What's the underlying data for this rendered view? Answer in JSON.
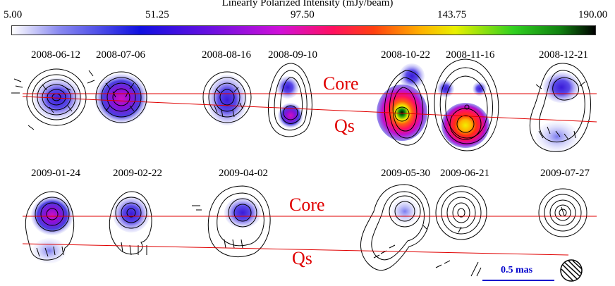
{
  "colorbar": {
    "title": "Linearly Polarized Intensity (mJy/beam)",
    "ticks": [
      "5.00",
      "51.25",
      "97.50",
      "143.75",
      "190.00"
    ]
  },
  "row1_dates": [
    "2008-06-12",
    "2008-07-06",
    "2008-08-16",
    "2008-09-10",
    "2008-10-22",
    "2008-11-16",
    "2008-12-21"
  ],
  "row2_dates": [
    "2009-01-24",
    "2009-02-22",
    "2009-04-02",
    "2009-05-30",
    "2009-06-21",
    "2009-07-27"
  ],
  "labels": {
    "core": "Core",
    "qs": "Qs"
  },
  "scale_bar": {
    "text": "0.5 mas",
    "color": "#0000cc"
  },
  "colors": {
    "lines": "#e00000",
    "labels": "#e00000",
    "contours": "#000000"
  }
}
